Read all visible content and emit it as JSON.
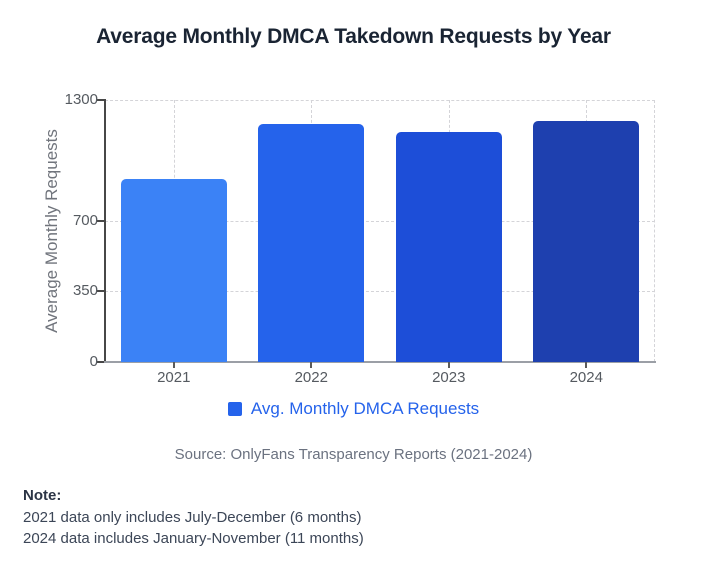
{
  "title": "Average Monthly DMCA Takedown Requests by Year",
  "chart_data": {
    "type": "bar",
    "categories": [
      "2021",
      "2022",
      "2023",
      "2024"
    ],
    "values": [
      908,
      1181,
      1141,
      1198
    ],
    "bar_colors": [
      "#3b82f6",
      "#2563eb",
      "#1d4ed8",
      "#1e40af"
    ],
    "title": "Average Monthly DMCA Takedown Requests by Year",
    "xlabel": "",
    "ylabel": "Average Monthly Requests",
    "ylim": [
      0,
      1300
    ],
    "yticks": [
      0,
      350,
      700,
      1300
    ],
    "grid": "dashed",
    "legend": {
      "label": "Avg. Monthly DMCA Requests",
      "color": "#2563eb",
      "position": "bottom"
    }
  },
  "source": "Source: OnlyFans Transparency Reports (2021-2024)",
  "note": {
    "heading": "Note:",
    "lines": [
      "2021 data only includes July-December (6 months)",
      "2024 data includes January-November (11 months)"
    ]
  },
  "colors": {
    "background": "#ffffff",
    "title_text": "#1a2433",
    "axis_line": "#474747",
    "baseline": "#9b9fa6",
    "gridline": "#d4d4d8",
    "tick_text": "#555a60",
    "ylabel_text": "#70747c",
    "source_text": "#6b7280",
    "note_text": "#3c4657"
  }
}
